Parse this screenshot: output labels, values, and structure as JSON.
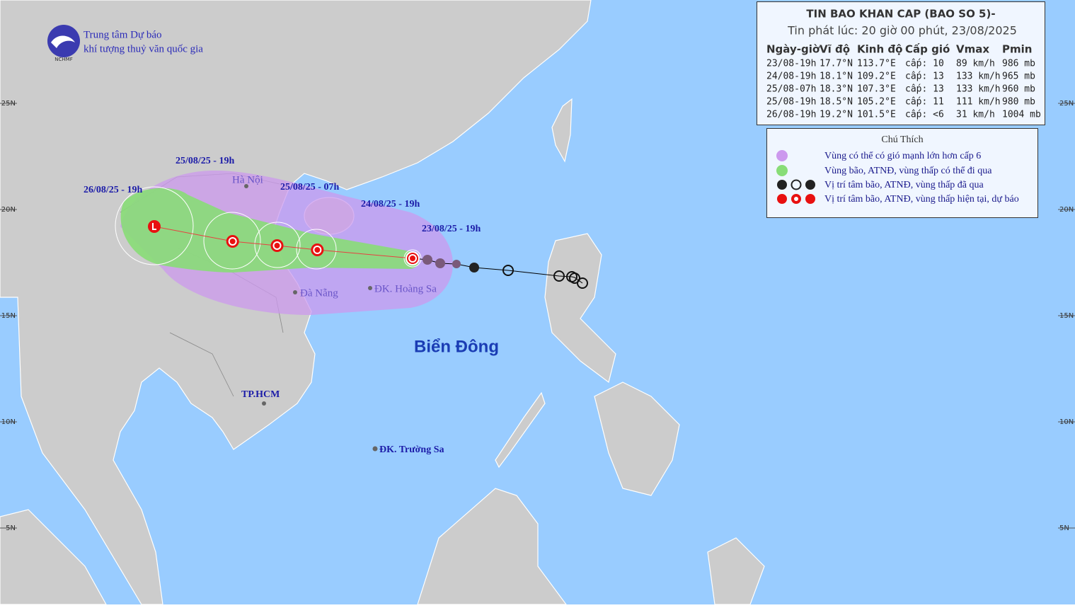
{
  "header": {
    "org_line1": "Trung tâm Dự báo",
    "org_line2": "khí tượng thuỷ văn quốc gia",
    "logo_text": "NCHMF"
  },
  "bulletin": {
    "title": "TIN BAO KHAN CAP (BAO SO 5)-",
    "issued": "Tin phát lúc: 20 giờ 00 phút, 23/08/2025",
    "columns": [
      "Ngày-giờ",
      "Vĩ độ",
      "Kinh độ",
      "Cấp gió",
      "Vmax",
      "Pmin"
    ],
    "rows": [
      [
        "23/08-19h",
        "17.7°N",
        "113.7°E",
        "cấp: 10",
        "89 km/h",
        "986 mb"
      ],
      [
        "24/08-19h",
        "18.1°N",
        "109.2°E",
        "cấp: 13",
        "133 km/h",
        "965 mb"
      ],
      [
        "25/08-07h",
        "18.3°N",
        "107.3°E",
        "cấp: 13",
        "133 km/h",
        "960 mb"
      ],
      [
        "25/08-19h",
        "18.5°N",
        "105.2°E",
        "cấp: 11",
        "111 km/h",
        "980 mb"
      ],
      [
        "26/08-19h",
        "19.2°N",
        "101.5°E",
        "cấp: <6",
        "31 km/h",
        "1004 mb"
      ]
    ]
  },
  "legend": {
    "title": "Chú Thích",
    "items": [
      "Vùng có thể có gió mạnh lớn hơn cấp 6",
      "Vùng bão, ATNĐ, vùng thấp có thể đi qua",
      "Vị trí tâm bão, ATNĐ, vùng thấp đã qua",
      "Vị trí tâm bão, ATNĐ, vùng thấp hiện tại, dự báo"
    ]
  },
  "map": {
    "time_labels": [
      "25/08/25 - 19h",
      "26/08/25 - 19h",
      "25/08/25 - 07h",
      "24/08/25 - 19h",
      "23/08/25 - 19h"
    ],
    "places": [
      "Hà Nội",
      "Đà Nẵng",
      "ĐK. Hoàng Sa",
      "TP.HCM",
      "ĐK. Trường Sa"
    ],
    "sea_name": "Biển Đông",
    "lat_labels": [
      {
        "value": 25,
        "label": "25N"
      },
      {
        "value": 20,
        "label": "20N"
      },
      {
        "value": 15,
        "label": "15N"
      },
      {
        "value": 10,
        "label": "10N"
      },
      {
        "value": 5,
        "label": "5N"
      }
    ]
  }
}
